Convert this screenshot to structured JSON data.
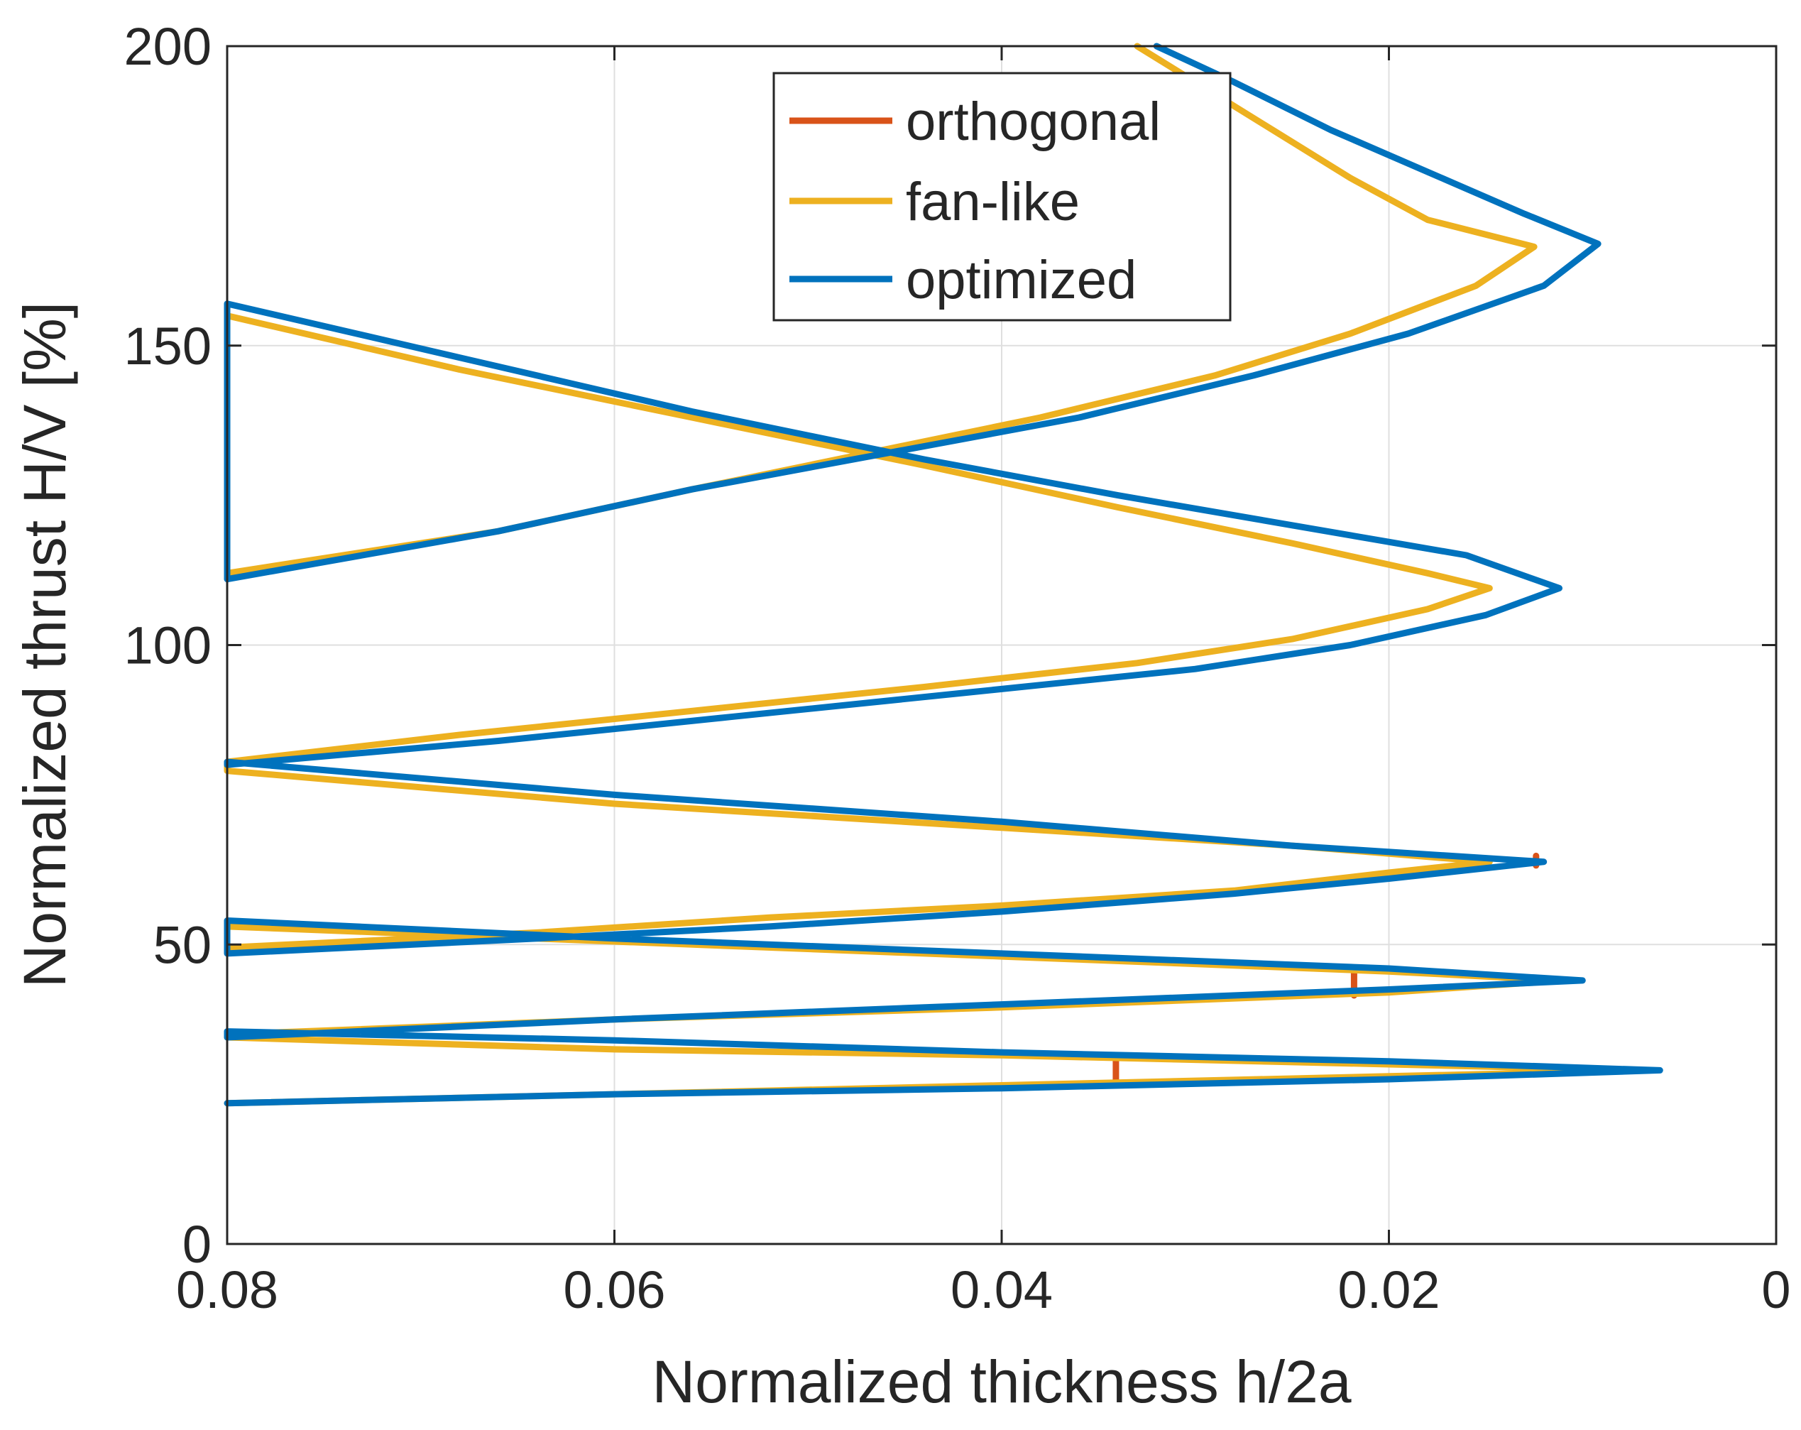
{
  "chart_data": {
    "type": "line",
    "xlabel": "Normalized thickness h/2a",
    "ylabel": "Normalized thrust H/V [%]",
    "xlim": [
      0.08,
      0
    ],
    "ylim": [
      0,
      200
    ],
    "x_direction": "reversed",
    "xticks": [
      0.08,
      0.06,
      0.04,
      0.02,
      0
    ],
    "xtick_labels": [
      "0.08",
      "0.06",
      "0.04",
      "0.02",
      "0"
    ],
    "yticks": [
      0,
      50,
      100,
      150,
      200
    ],
    "ytick_labels": [
      "0",
      "50",
      "100",
      "150",
      "200"
    ],
    "grid": true,
    "legend_position": "top-center",
    "series": [
      {
        "name": "orthogonal",
        "color": "#D95319",
        "segments": [
          [
            [
              0.0218,
              41.5
            ],
            [
              0.0218,
              45.5
            ]
          ],
          [
            [
              0.0341,
              26.5
            ],
            [
              0.0341,
              31.0
            ]
          ],
          [
            [
              0.0124,
              63.2
            ],
            [
              0.0124,
              64.8
            ]
          ]
        ]
      },
      {
        "name": "fan-like",
        "color": "#EDB120",
        "points": [
          [
            0.033,
            200
          ],
          [
            0.03,
            194
          ],
          [
            0.026,
            186
          ],
          [
            0.022,
            178
          ],
          [
            0.018,
            171
          ],
          [
            0.0125,
            166.5
          ],
          [
            0.0155,
            160
          ],
          [
            0.022,
            152
          ],
          [
            0.029,
            145
          ],
          [
            0.038,
            138
          ],
          [
            0.047,
            132
          ],
          [
            0.056,
            126
          ],
          [
            0.066,
            119
          ],
          [
            0.08,
            112
          ],
          [
            0.08,
            155
          ],
          [
            0.068,
            146
          ],
          [
            0.056,
            138
          ],
          [
            0.044,
            130
          ],
          [
            0.034,
            123
          ],
          [
            0.025,
            117
          ],
          [
            0.018,
            112
          ],
          [
            0.0148,
            109.5
          ],
          [
            0.018,
            106
          ],
          [
            0.025,
            101
          ],
          [
            0.033,
            97
          ],
          [
            0.044,
            93
          ],
          [
            0.056,
            89
          ],
          [
            0.068,
            85
          ],
          [
            0.08,
            80.5
          ],
          [
            0.08,
            79
          ],
          [
            0.06,
            73.5
          ],
          [
            0.04,
            69.5
          ],
          [
            0.025,
            66.5
          ],
          [
            0.0148,
            63.8
          ],
          [
            0.02,
            62
          ],
          [
            0.028,
            59
          ],
          [
            0.04,
            56.5
          ],
          [
            0.052,
            54.5
          ],
          [
            0.064,
            52
          ],
          [
            0.08,
            49.5
          ],
          [
            0.08,
            53
          ],
          [
            0.06,
            50.5
          ],
          [
            0.04,
            48
          ],
          [
            0.02,
            45.5
          ],
          [
            0.011,
            44
          ],
          [
            0.02,
            42
          ],
          [
            0.04,
            39.5
          ],
          [
            0.06,
            37.5
          ],
          [
            0.08,
            35
          ],
          [
            0.08,
            34.5
          ],
          [
            0.06,
            32.5
          ],
          [
            0.04,
            31.5
          ],
          [
            0.02,
            30
          ],
          [
            0.0065,
            29
          ],
          [
            0.02,
            28
          ],
          [
            0.04,
            26.5
          ],
          [
            0.06,
            25
          ],
          [
            0.08,
            23.5
          ]
        ]
      },
      {
        "name": "optimized",
        "color": "#0072BD",
        "points": [
          [
            0.032,
            200
          ],
          [
            0.028,
            194
          ],
          [
            0.023,
            186
          ],
          [
            0.018,
            179
          ],
          [
            0.013,
            172
          ],
          [
            0.0092,
            167
          ],
          [
            0.012,
            160
          ],
          [
            0.019,
            152
          ],
          [
            0.027,
            145
          ],
          [
            0.036,
            138
          ],
          [
            0.046,
            132
          ],
          [
            0.056,
            126
          ],
          [
            0.066,
            119
          ],
          [
            0.08,
            111
          ],
          [
            0.08,
            157
          ],
          [
            0.068,
            148
          ],
          [
            0.056,
            139
          ],
          [
            0.044,
            131
          ],
          [
            0.034,
            125
          ],
          [
            0.025,
            120
          ],
          [
            0.016,
            115
          ],
          [
            0.0112,
            109.5
          ],
          [
            0.015,
            105
          ],
          [
            0.022,
            100
          ],
          [
            0.03,
            96
          ],
          [
            0.042,
            92
          ],
          [
            0.054,
            88
          ],
          [
            0.066,
            84
          ],
          [
            0.08,
            80
          ],
          [
            0.08,
            80.5
          ],
          [
            0.06,
            75
          ],
          [
            0.04,
            70.5
          ],
          [
            0.025,
            66.5
          ],
          [
            0.012,
            63.8
          ],
          [
            0.02,
            61
          ],
          [
            0.028,
            58.5
          ],
          [
            0.04,
            55.5
          ],
          [
            0.052,
            53
          ],
          [
            0.064,
            51
          ],
          [
            0.08,
            48.5
          ],
          [
            0.08,
            54
          ],
          [
            0.06,
            51
          ],
          [
            0.04,
            48.5
          ],
          [
            0.02,
            46
          ],
          [
            0.01,
            44
          ],
          [
            0.02,
            42.5
          ],
          [
            0.04,
            40
          ],
          [
            0.06,
            37.5
          ],
          [
            0.08,
            34.5
          ],
          [
            0.08,
            35.5
          ],
          [
            0.06,
            34
          ],
          [
            0.04,
            32
          ],
          [
            0.02,
            30.5
          ],
          [
            0.006,
            29
          ],
          [
            0.02,
            27.5
          ],
          [
            0.04,
            26
          ],
          [
            0.06,
            25
          ],
          [
            0.08,
            23.5
          ]
        ]
      }
    ]
  }
}
